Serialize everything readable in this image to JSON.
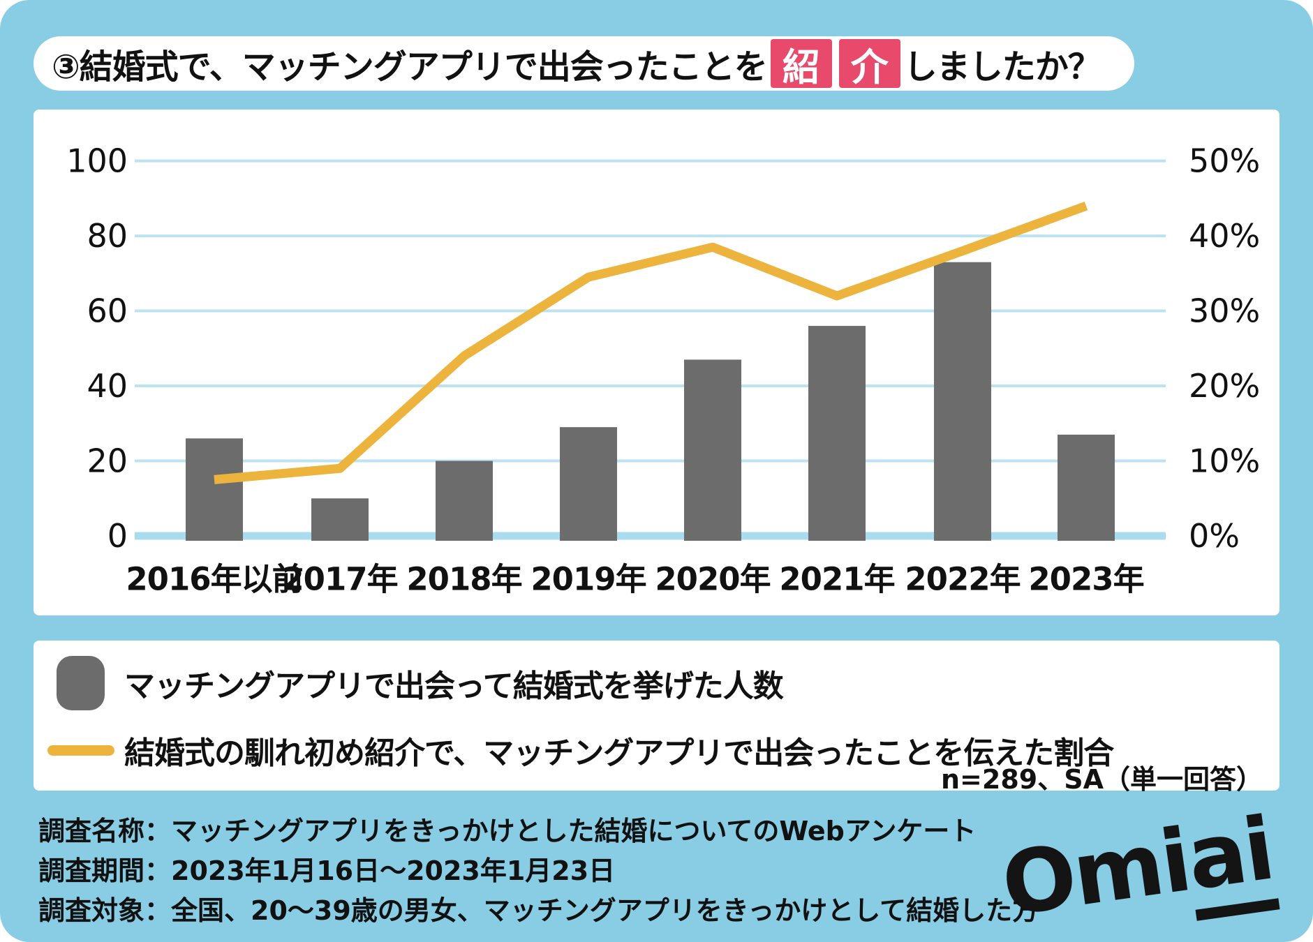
{
  "title": {
    "prefix": "③結婚式で、マッチングアプリで出会ったことを",
    "highlight_chars": [
      "紹",
      "介"
    ],
    "suffix": "しましたか？"
  },
  "chart_data": {
    "type": "bar",
    "categories": [
      "2016年以前",
      "2017年",
      "2018年",
      "2019年",
      "2020年",
      "2021年",
      "2022年",
      "2023年"
    ],
    "series": [
      {
        "name": "マッチングアプリで出会って結婚式を挙げた人数",
        "type": "bar",
        "axis": "left",
        "values": [
          26,
          10,
          20,
          29,
          47,
          56,
          73,
          27
        ]
      },
      {
        "name": "結婚式の馴れ初め紹介で、マッチングアプリで出会ったことを伝えた割合",
        "type": "line",
        "axis": "right",
        "values_percent": [
          7.5,
          9,
          24,
          34.5,
          38.5,
          32,
          38,
          44
        ]
      }
    ],
    "left_axis": {
      "ticks": [
        100,
        80,
        60,
        40,
        20,
        0
      ],
      "range": [
        0,
        100
      ]
    },
    "right_axis": {
      "tick_labels": [
        "50%",
        "40%",
        "30%",
        "20%",
        "10%",
        "0%"
      ],
      "range": [
        0,
        50
      ]
    },
    "grid": true,
    "legend_position": "bottom"
  },
  "legend": {
    "items": [
      {
        "swatch": "gray-rounded-square",
        "label": "マッチングアプリで出会って結婚式を挙げた人数"
      },
      {
        "swatch": "yellow-line",
        "label": "結婚式の馴れ初め紹介で、マッチングアプリで出会ったことを伝えた割合"
      }
    ],
    "note": "n=289、SA（単一回答）"
  },
  "footer": {
    "lines": [
      "調査名称：マッチングアプリをきっかけとした結婚についてのWebアンケート",
      "調査期間：2023年1月16日～2023年1月23日",
      "調査対象：全国、20～39歳の男女、マッチングアプリをきっかけとして結婚した方"
    ]
  },
  "logo": {
    "text_main": "Omi",
    "text_underlined": "ai"
  },
  "colors": {
    "background": "#89CDE4",
    "panel": "#FFFFFF",
    "bar": "#6C6C6C",
    "line": "#EDB43D",
    "gridline": "#BCE3F1",
    "zero_axis": "#A9DCEE",
    "highlight_box": "#E74A6B",
    "highlight_text": "#FFFFFF",
    "text": "#111111"
  }
}
